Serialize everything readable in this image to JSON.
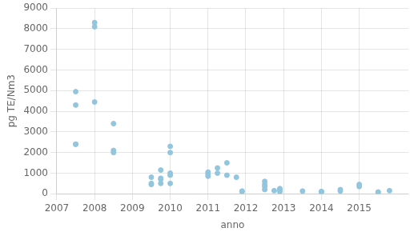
{
  "chart_data": {
    "type": "scatter",
    "x": [
      2007.5,
      2007.5,
      2007.5,
      2007.5,
      2008.0,
      2008.0,
      2008.0,
      2008.5,
      2008.5,
      2008.5,
      2009.5,
      2009.5,
      2009.5,
      2009.75,
      2009.75,
      2009.75,
      2009.75,
      2010.0,
      2010.0,
      2010.0,
      2010.0,
      2010.0,
      2011.0,
      2011.0,
      2011.0,
      2011.25,
      2011.25,
      2011.5,
      2011.5,
      2011.75,
      2011.9,
      2011.9,
      2012.5,
      2012.5,
      2012.5,
      2012.5,
      2012.75,
      2012.9,
      2012.9,
      2012.9,
      2013.5,
      2014.0,
      2014.0,
      2014.0,
      2014.5,
      2014.5,
      2015.0,
      2015.0,
      2015.5,
      2015.5,
      2015.8
    ],
    "values": [
      4300,
      4950,
      2400,
      2400,
      8300,
      8100,
      4450,
      3400,
      2100,
      2000,
      800,
      500,
      450,
      1150,
      750,
      700,
      500,
      2300,
      2000,
      1000,
      900,
      500,
      1050,
      950,
      850,
      1250,
      1000,
      1500,
      900,
      800,
      130,
      100,
      600,
      450,
      350,
      200,
      150,
      250,
      200,
      100,
      130,
      100,
      100,
      100,
      200,
      130,
      450,
      350,
      80,
      80,
      150
    ],
    "color": "#92c5de",
    "xlabel": "anno",
    "ylabel": "pg TE/Nm3",
    "xlim": [
      2007,
      2016.3
    ],
    "ylim": [
      0,
      9000
    ],
    "xticks": [
      2007,
      2008,
      2009,
      2010,
      2011,
      2012,
      2013,
      2014,
      2015
    ],
    "yticks": [
      0,
      1000,
      2000,
      3000,
      4000,
      5000,
      6000,
      7000,
      8000,
      9000
    ],
    "grid": true
  }
}
